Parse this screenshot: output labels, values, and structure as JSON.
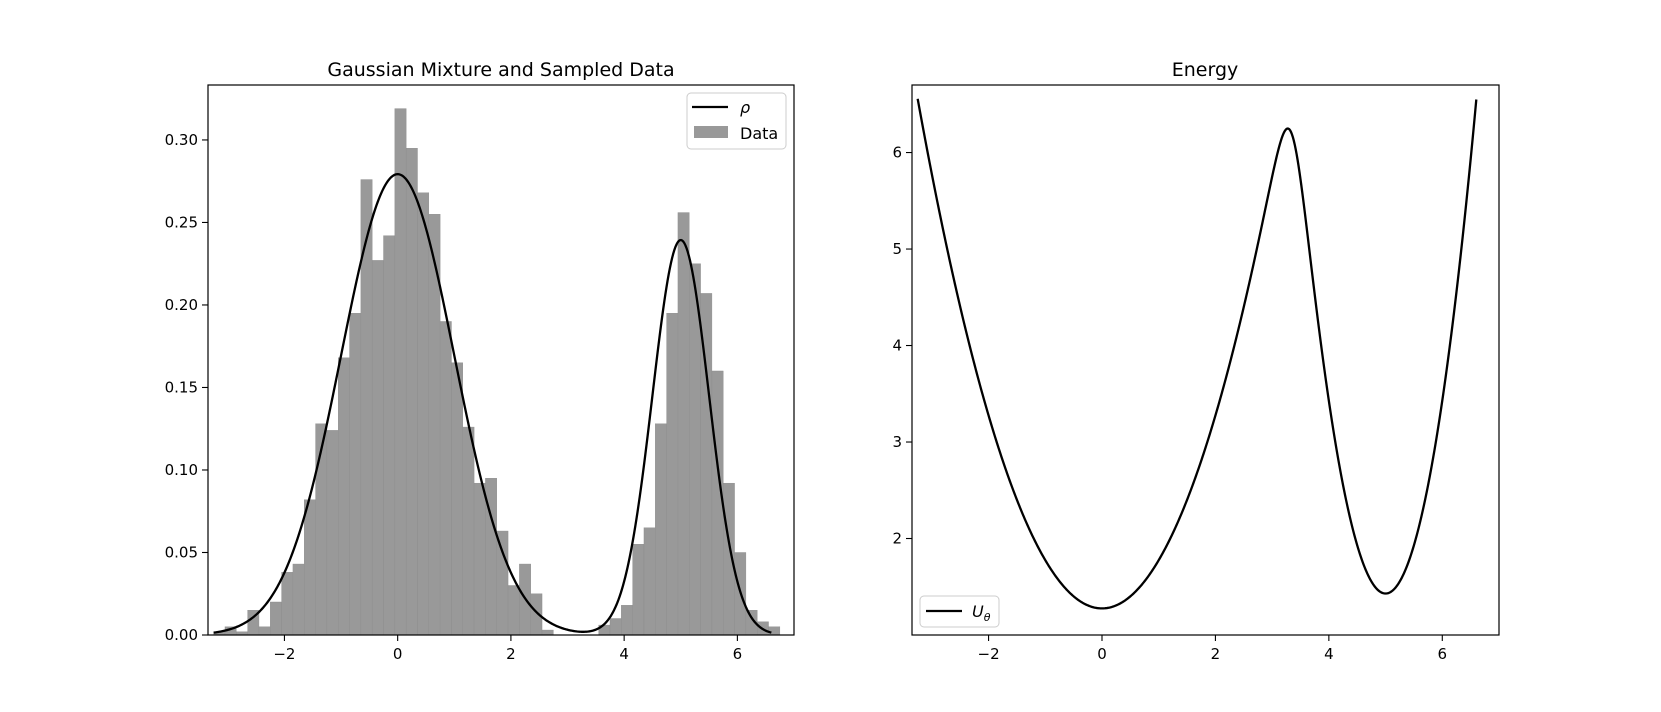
{
  "colors": {
    "bar": "#999999",
    "line": "#000000",
    "frame": "#000000"
  },
  "chart_data": [
    {
      "type": "bar",
      "title": "Gaussian Mixture and Sampled Data",
      "xlabel": "",
      "ylabel": "",
      "xlim": [
        -3.35,
        7.0
      ],
      "ylim": [
        0,
        0.3333
      ],
      "xticks": [
        -2,
        0,
        2,
        4,
        6
      ],
      "xtick_labels": [
        "−2",
        "0",
        "2",
        "4",
        "6"
      ],
      "yticks": [
        0.0,
        0.05,
        0.1,
        0.15,
        0.2,
        0.25,
        0.3
      ],
      "ytick_labels": [
        "0.00",
        "0.05",
        "0.10",
        "0.15",
        "0.20",
        "0.25",
        "0.30"
      ],
      "legend": {
        "placement": "upper right",
        "entries": [
          {
            "label": "ρ",
            "kind": "line"
          },
          {
            "label": "Data",
            "kind": "bar"
          }
        ]
      },
      "histogram": {
        "bin_edges_start": -3.25,
        "bin_width": 0.2,
        "values": [
          0.002,
          0.005,
          0.002,
          0.015,
          0.005,
          0.02,
          0.038,
          0.043,
          0.082,
          0.128,
          0.124,
          0.168,
          0.195,
          0.276,
          0.227,
          0.242,
          0.319,
          0.295,
          0.268,
          0.255,
          0.19,
          0.165,
          0.126,
          0.092,
          0.095,
          0.063,
          0.03,
          0.043,
          0.025,
          0.003,
          0.0,
          0.0,
          0.0,
          0.0,
          0.006,
          0.01,
          0.018,
          0.055,
          0.065,
          0.128,
          0.195,
          0.256,
          0.225,
          0.207,
          0.16,
          0.092,
          0.05,
          0.015,
          0.008,
          0.005
        ]
      },
      "series": [
        {
          "name": "ρ",
          "kind": "line",
          "x_range": [
            -3.25,
            6.6
          ],
          "components": [
            {
              "weight": 0.7,
              "mean": 0.0,
              "sd": 1.0
            },
            {
              "weight": 0.3,
              "mean": 5.0,
              "sd": 0.5
            }
          ]
        }
      ]
    },
    {
      "type": "line",
      "title": "Energy",
      "xlabel": "",
      "ylabel": "",
      "xlim": [
        -3.35,
        7.0
      ],
      "ylim": [
        1.0,
        6.7
      ],
      "xticks": [
        -2,
        0,
        2,
        4,
        6
      ],
      "xtick_labels": [
        "−2",
        "0",
        "2",
        "4",
        "6"
      ],
      "yticks": [
        2,
        3,
        4,
        5,
        6
      ],
      "ytick_labels": [
        "2",
        "3",
        "4",
        "5",
        "6"
      ],
      "legend": {
        "placement": "lower left",
        "entries": [
          {
            "label": "U",
            "subscript": "θ",
            "kind": "line"
          }
        ]
      },
      "series": [
        {
          "name": "Uθ",
          "kind": "line",
          "x_range": [
            -3.25,
            6.6
          ],
          "definition": "-log(ρ(x))",
          "reference_points": [
            {
              "x": -3.25,
              "y": 6.48
            },
            {
              "x": 0.0,
              "y": 1.27
            },
            {
              "x": 3.28,
              "y": 6.25
            },
            {
              "x": 5.0,
              "y": 1.42
            },
            {
              "x": 6.6,
              "y": 6.43
            }
          ]
        }
      ]
    }
  ]
}
